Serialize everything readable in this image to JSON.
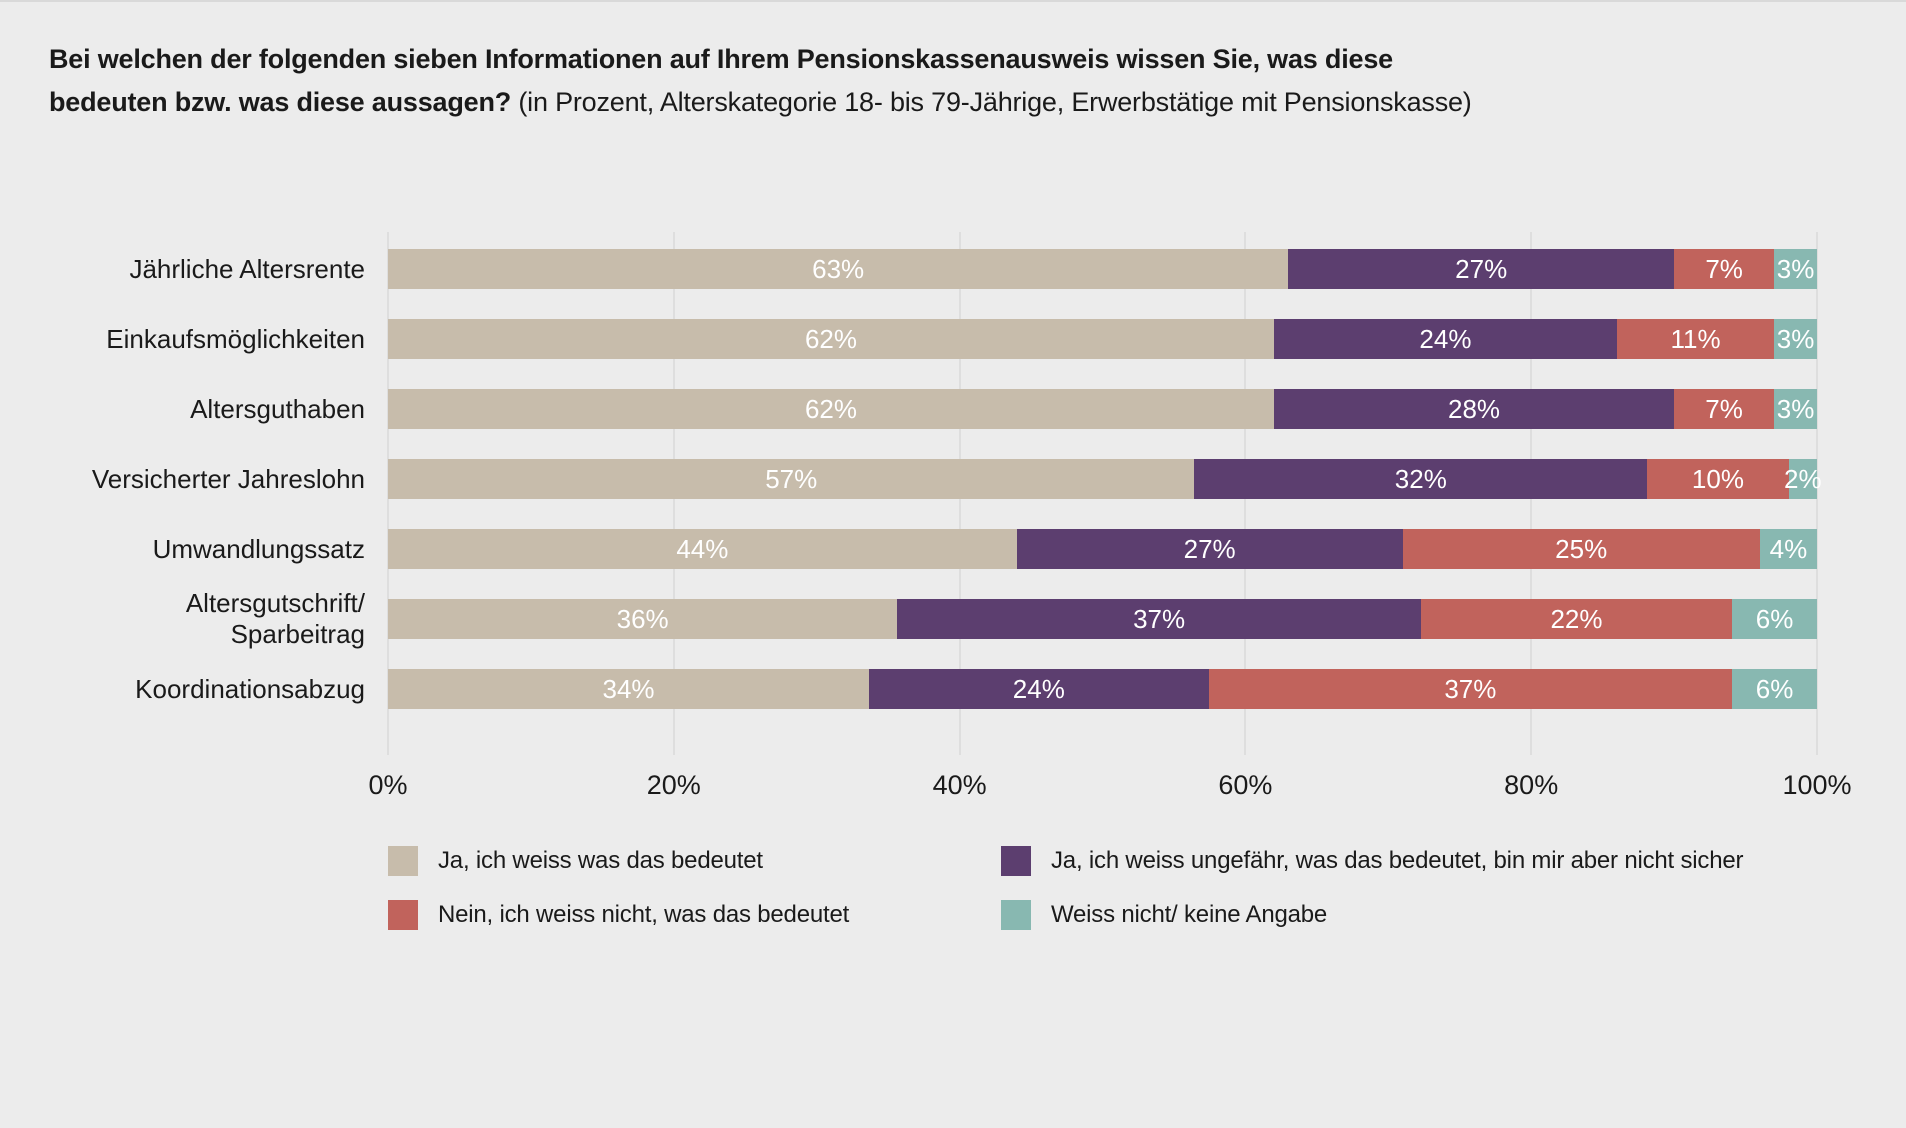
{
  "title": {
    "line1_bold": "Bei welchen der folgenden sieben Informationen auf Ihrem Pensionskassenausweis wissen Sie, was diese",
    "line2_bold": "bedeuten bzw. was diese aussagen?",
    "line2_normal": "(in Prozent, Alterskategorie 18- bis 79-Jährige, Erwerbstätige mit Pensionskasse)"
  },
  "colors": {
    "background": "#ececec",
    "hairline": "#d9d9d9",
    "gridline": "#dedede",
    "text": "#1a1a1a",
    "bar_label": "#ffffff"
  },
  "chart_data": {
    "type": "bar",
    "orientation": "horizontal",
    "stacked": true,
    "unit": "%",
    "categories": [
      "Jährliche Altersrente",
      "Einkaufsmöglichkeiten",
      "Altersguthaben",
      "Versicherter Jahreslohn",
      "Umwandlungssatz",
      "Altersgutschrift/\nSparbeitrag",
      "Koordinationsabzug"
    ],
    "series": [
      {
        "name": "Ja, ich weiss was das bedeutet",
        "color": "#c7bcab",
        "values": [
          63,
          62,
          62,
          57,
          44,
          36,
          34
        ]
      },
      {
        "name": "Ja, ich weiss ungefähr, was das bedeutet, bin mir aber nicht sicher",
        "color": "#5c3e6f",
        "values": [
          27,
          24,
          28,
          32,
          27,
          37,
          24
        ]
      },
      {
        "name": "Nein, ich weiss nicht, was das bedeutet",
        "color": "#c1635c",
        "values": [
          7,
          11,
          7,
          10,
          25,
          22,
          37
        ]
      },
      {
        "name": "Weiss nicht/ keine Angabe",
        "color": "#88b8b1",
        "values": [
          3,
          3,
          3,
          2,
          4,
          6,
          6
        ]
      }
    ],
    "x_axis": {
      "ticks": [
        "0%",
        "20%",
        "40%",
        "60%",
        "80%",
        "100%"
      ],
      "range": [
        0,
        100
      ],
      "grid": true
    },
    "legend_position": "bottom",
    "value_labels": "inside-white"
  }
}
